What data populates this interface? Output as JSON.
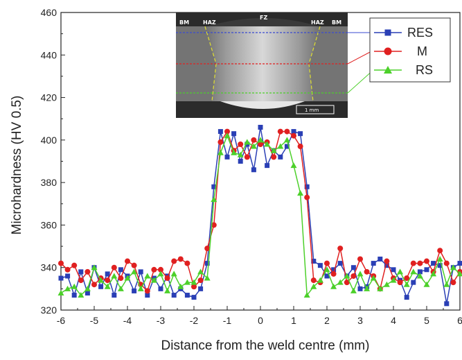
{
  "chart_data": {
    "type": "line",
    "title": "",
    "xlabel": "Distance from the weld centre (mm)",
    "ylabel": "Microhardness (HV 0.5)",
    "xlim": [
      -6,
      6
    ],
    "ylim": [
      320,
      460
    ],
    "xticks": [
      -6,
      -5,
      -4,
      -3,
      -2,
      -1,
      0,
      1,
      2,
      3,
      4,
      5,
      6
    ],
    "yticks": [
      320,
      340,
      360,
      380,
      400,
      420,
      440,
      460
    ],
    "grid": false,
    "legend": "top-right",
    "x": [
      -6.0,
      -5.8,
      -5.6,
      -5.4,
      -5.2,
      -5.0,
      -4.8,
      -4.6,
      -4.4,
      -4.2,
      -4.0,
      -3.8,
      -3.6,
      -3.4,
      -3.2,
      -3.0,
      -2.8,
      -2.6,
      -2.4,
      -2.2,
      -2.0,
      -1.8,
      -1.6,
      -1.4,
      -1.2,
      -1.0,
      -0.8,
      -0.6,
      -0.4,
      -0.2,
      0.0,
      0.2,
      0.4,
      0.6,
      0.8,
      1.0,
      1.2,
      1.4,
      1.6,
      1.8,
      2.0,
      2.2,
      2.4,
      2.6,
      2.8,
      3.0,
      3.2,
      3.4,
      3.6,
      3.8,
      4.0,
      4.2,
      4.4,
      4.6,
      4.8,
      5.0,
      5.2,
      5.4,
      5.6,
      5.8,
      6.0
    ],
    "series": [
      {
        "name": "RES",
        "color": "#2a3fb5",
        "marker": "square",
        "values": [
          335,
          336,
          327,
          338,
          328,
          340,
          331,
          337,
          327,
          339,
          336,
          329,
          338,
          327,
          335,
          330,
          336,
          327,
          330,
          327,
          326,
          330,
          342,
          378,
          404,
          392,
          403,
          390,
          398,
          386,
          406,
          388,
          395,
          392,
          397,
          404,
          403,
          378,
          343,
          341,
          336,
          339,
          342,
          336,
          340,
          330,
          331,
          342,
          344,
          341,
          339,
          334,
          326,
          333,
          338,
          339,
          342,
          341,
          323,
          340,
          342
        ]
      },
      {
        "name": "M",
        "color": "#e02020",
        "marker": "circle",
        "values": [
          342,
          339,
          341,
          334,
          338,
          332,
          335,
          334,
          340,
          335,
          343,
          341,
          332,
          329,
          339,
          339,
          335,
          343,
          344,
          342,
          331,
          334,
          349,
          360,
          399,
          404,
          395,
          398,
          392,
          400,
          398,
          399,
          392,
          404,
          404,
          402,
          397,
          373,
          334,
          333,
          342,
          337,
          349,
          333,
          336,
          344,
          338,
          336,
          330,
          343,
          335,
          333,
          335,
          342,
          342,
          343,
          338,
          348,
          342,
          333,
          338
        ]
      },
      {
        "name": "RS",
        "color": "#4cd02a",
        "marker": "triangle",
        "values": [
          328,
          330,
          331,
          327,
          330,
          340,
          334,
          331,
          336,
          330,
          335,
          338,
          330,
          336,
          334,
          337,
          329,
          337,
          331,
          333,
          333,
          338,
          335,
          372,
          394,
          402,
          394,
          393,
          399,
          397,
          400,
          398,
          395,
          397,
          400,
          388,
          375,
          327,
          331,
          334,
          339,
          331,
          333,
          336,
          329,
          337,
          330,
          335,
          330,
          332,
          334,
          338,
          332,
          338,
          336,
          332,
          337,
          344,
          332,
          340,
          337
        ]
      }
    ],
    "inset_labels": [
      "BM",
      "HAZ",
      "FZ",
      "HAZ",
      "BM"
    ],
    "inset_scale": "1 mm"
  }
}
